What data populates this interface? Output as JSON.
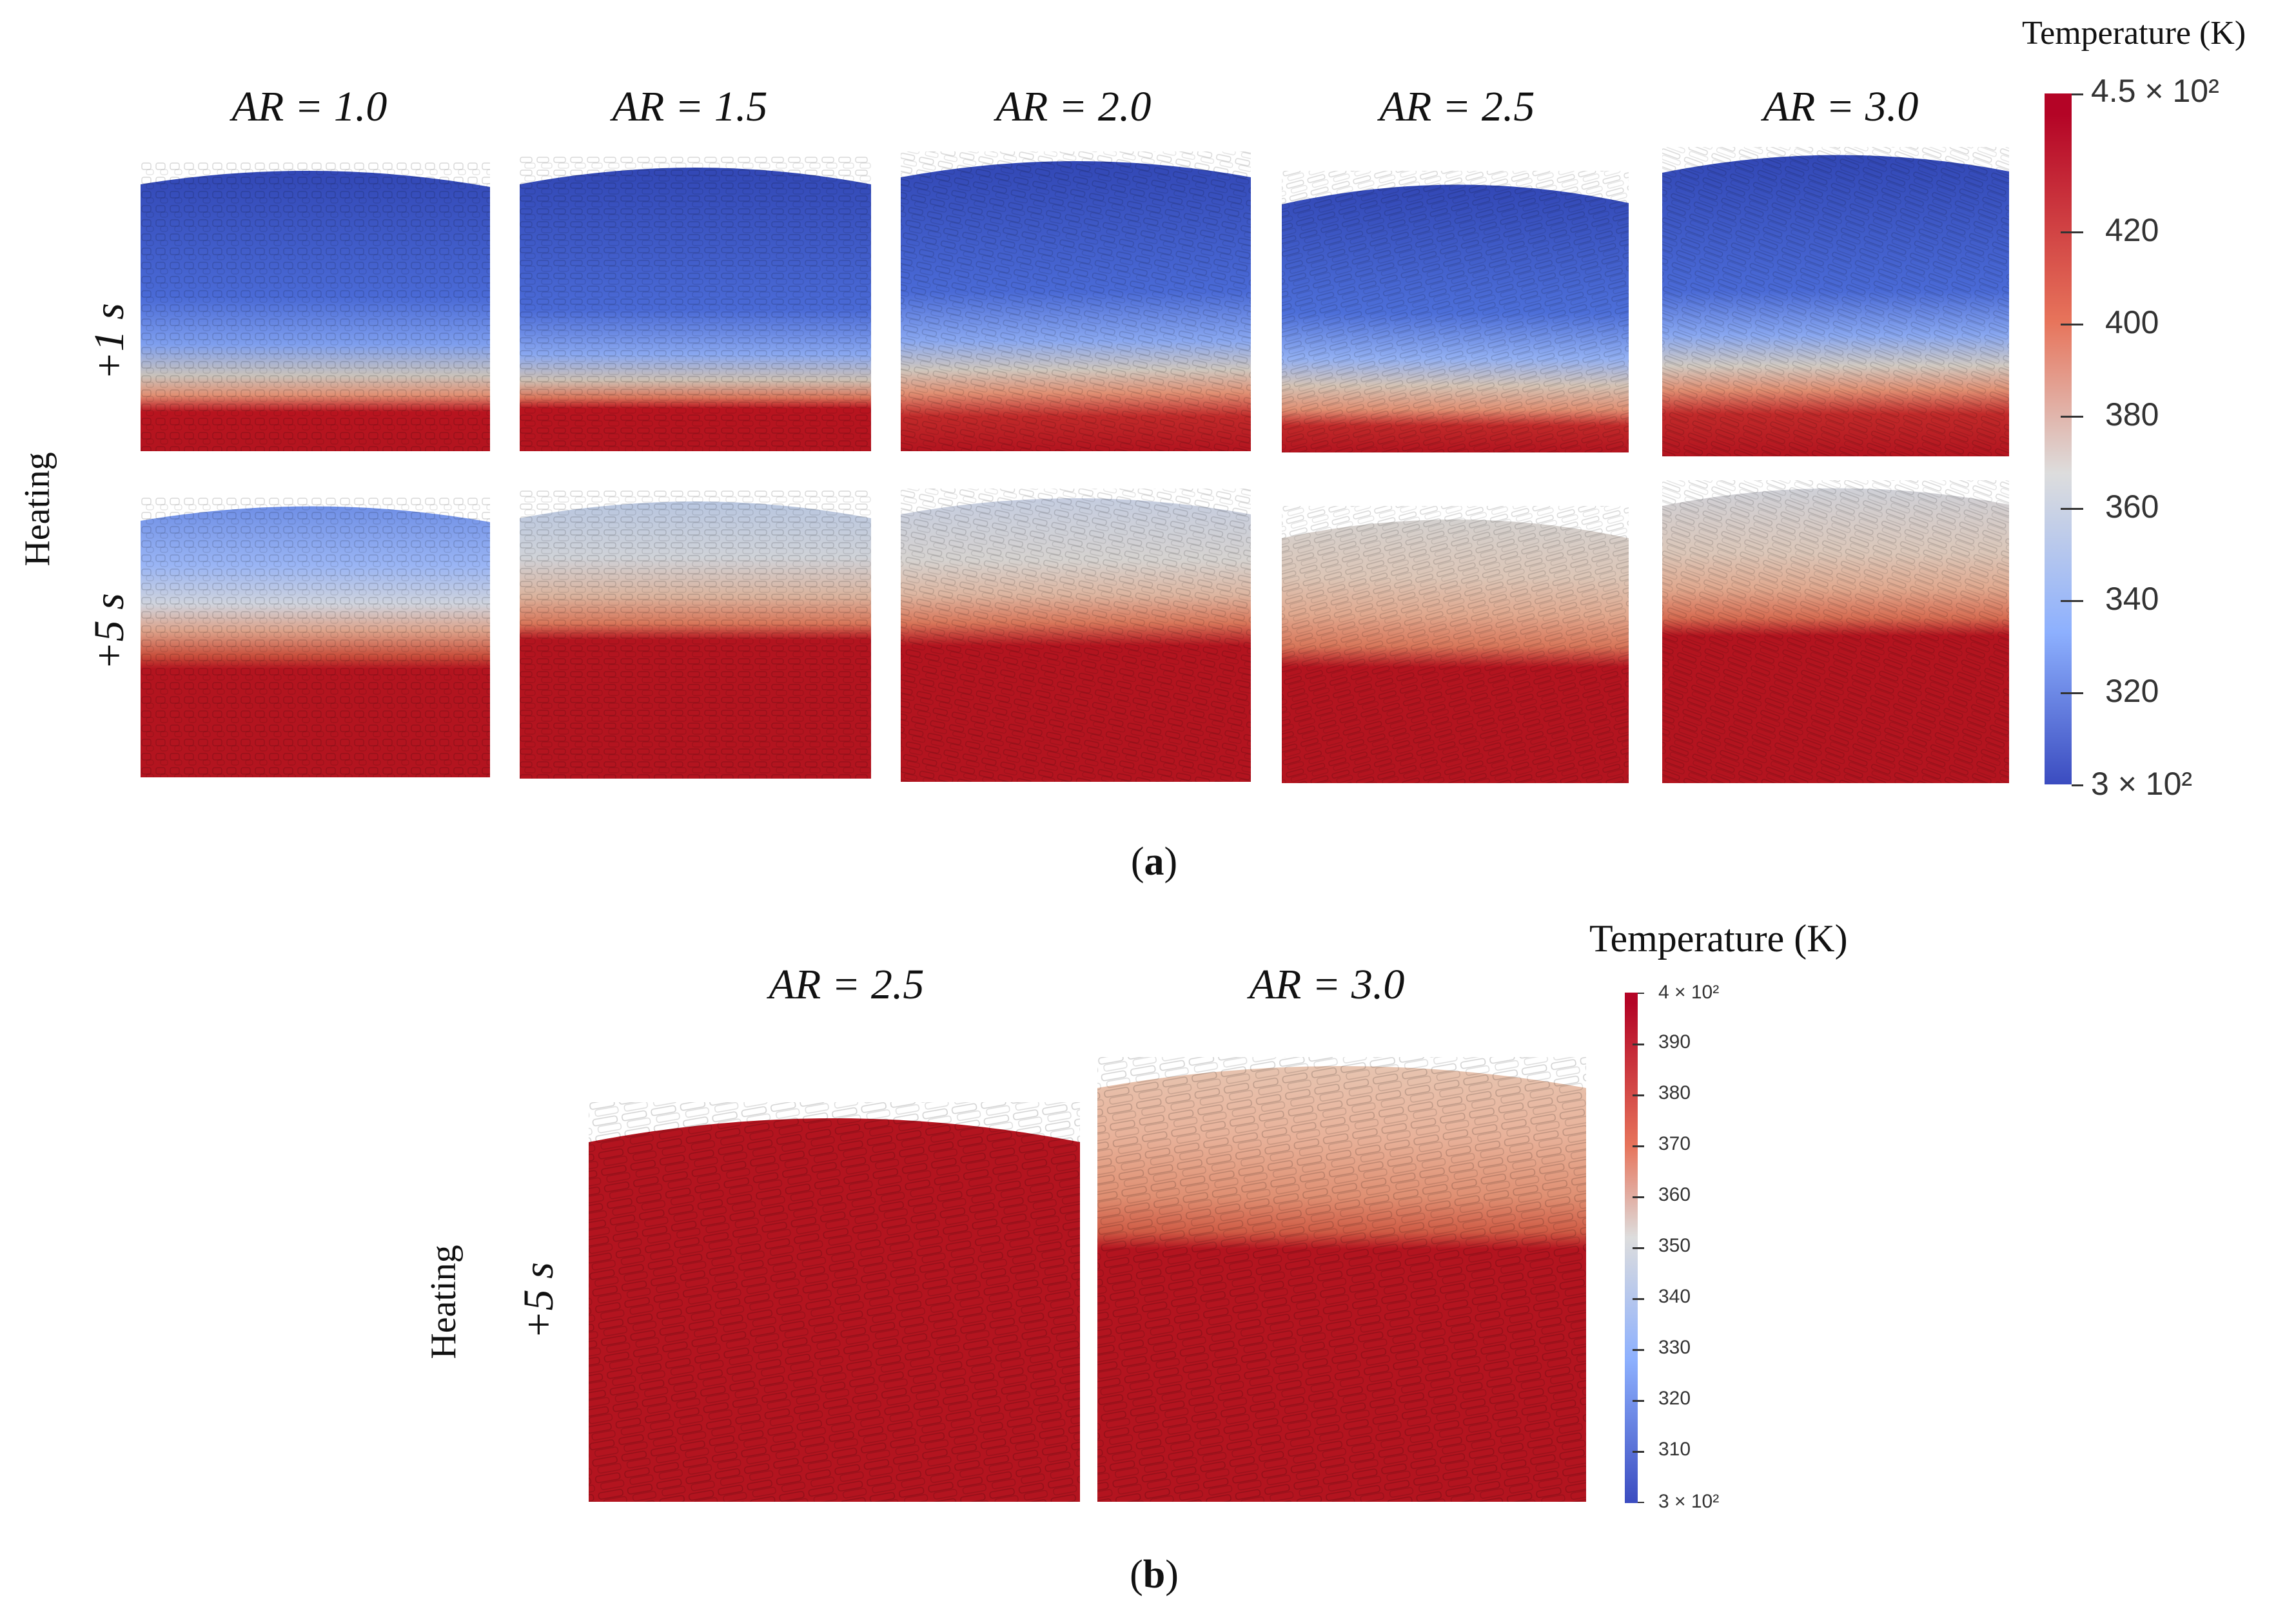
{
  "panel_a": {
    "colorbar": {
      "title": "Temperature (K)",
      "max_label": "4.5 × 10²",
      "min_label": "3 × 10²",
      "ticks": [
        "420",
        "400",
        "380",
        "360",
        "340",
        "320"
      ],
      "range": [
        300,
        450
      ]
    },
    "columns": [
      "AR = 1.0",
      "AR = 1.5",
      "AR = 2.0",
      "AR = 2.5",
      "AR = 3.0"
    ],
    "rows": [
      "+1 s",
      "+5 s"
    ],
    "group_label": "Heating",
    "caption_open": "(",
    "caption_letter": "a",
    "caption_close": ")"
  },
  "panel_b": {
    "colorbar": {
      "title": "Temperature (K)",
      "max_label": "4 × 10²",
      "min_label": "3 × 10²",
      "ticks": [
        "390",
        "380",
        "370",
        "360",
        "350",
        "340",
        "330",
        "320",
        "310"
      ],
      "range": [
        300,
        400
      ]
    },
    "columns": [
      "AR = 2.5",
      "AR = 3.0"
    ],
    "rows": [
      "+5 s"
    ],
    "group_label": "Heating",
    "caption_open": "(",
    "caption_letter": "b",
    "caption_close": ")"
  },
  "colors": {
    "cold": "#3b4cc0",
    "mid": "#dddddd",
    "hot": "#b40426"
  }
}
